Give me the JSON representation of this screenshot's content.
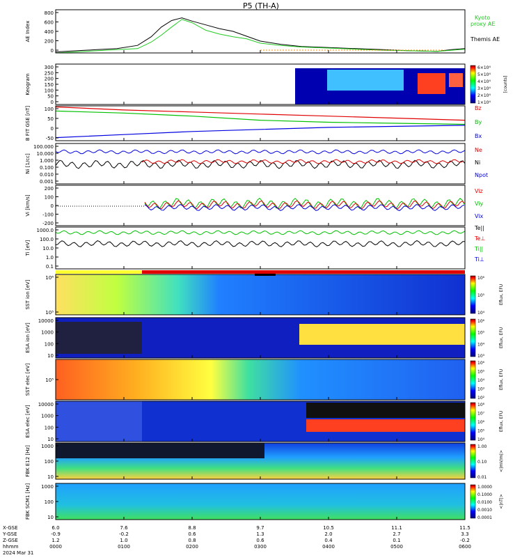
{
  "title": "P5 (TH-A)",
  "colors": {
    "black": "#000000",
    "red": "#e00000",
    "green": "#00c000",
    "blue": "#0000e0",
    "kyoto_green": "#22cc22",
    "orange": "#ff8c00",
    "yellow": "#ffff30"
  },
  "chart_data": {
    "type": "line",
    "time_axis": {
      "x_range_hours": [
        0,
        6
      ],
      "tick_hours": [
        0,
        1,
        2,
        3,
        4,
        5,
        6
      ],
      "tick_labels": [
        "0000",
        "0100",
        "0200",
        "0300",
        "0400",
        "0500",
        "0600"
      ],
      "date_label": "2024 Mar 31",
      "row_labels": [
        "X-GSE",
        "Y-GSE",
        "Z-GSE",
        "hhmm"
      ],
      "x_gse": [
        "6.0",
        "7.6",
        "8.8",
        "9.7",
        "10.5",
        "11.1",
        "11.5"
      ],
      "y_gse": [
        "-0.9",
        "-0.2",
        "0.6",
        "1.3",
        "2.0",
        "2.7",
        "3.3"
      ],
      "z_gse": [
        "1.2",
        "1.0",
        "0.8",
        "0.6",
        "0.4",
        "0.1",
        "-0.2"
      ]
    },
    "panels": [
      {
        "id": "ae",
        "ylabel": "AE Index",
        "yticks": [
          "0",
          "200",
          "400",
          "600",
          "800"
        ],
        "ylim": [
          0,
          800
        ],
        "legend": [
          "Kyoto",
          "proxy AE",
          "Themis AE"
        ],
        "series": [
          {
            "name": "Themis AE",
            "color": "black",
            "x": [
              0,
              0.3,
              0.6,
              0.9,
              1.2,
              1.4,
              1.55,
              1.7,
              1.85,
              2.0,
              2.2,
              2.4,
              2.6,
              2.8,
              3.0,
              3.3,
              3.6,
              4.0,
              4.4,
              4.8,
              5.2,
              5.6,
              5.8,
              6.0
            ],
            "y": [
              20,
              40,
              60,
              80,
              140,
              300,
              480,
              600,
              650,
              590,
              520,
              450,
              400,
              310,
              220,
              160,
              120,
              100,
              80,
              60,
              40,
              30,
              60,
              80
            ]
          },
          {
            "name": "Kyoto proxy AE",
            "color": "kyoto_green",
            "x": [
              0,
              0.3,
              0.6,
              0.9,
              1.2,
              1.4,
              1.55,
              1.7,
              1.85,
              2.0,
              2.2,
              2.4,
              2.6,
              2.8,
              3.0,
              3.3,
              3.6,
              4.0,
              4.4,
              4.8,
              5.2,
              5.6,
              5.8,
              6.0
            ],
            "y": [
              0,
              20,
              40,
              60,
              80,
              200,
              330,
              480,
              620,
              560,
              420,
              350,
              300,
              260,
              180,
              140,
              110,
              90,
              70,
              50,
              40,
              30,
              50,
              70
            ]
          }
        ]
      },
      {
        "id": "keogram",
        "ylabel": "Keogram",
        "yticks": [
          "0",
          "50",
          "100",
          "150",
          "200",
          "250",
          "300"
        ],
        "ylim": [
          0,
          300
        ],
        "colorbar": {
          "labels": [
            "1×10⁴",
            "2×10⁴",
            "3×10⁴",
            "4×10⁴",
            "5×10⁴",
            "6×10⁴"
          ],
          "title": "[counts]"
        }
      },
      {
        "id": "bfield",
        "ylabel": "B FIT GSE [nT]",
        "yticks": [
          "-50",
          "0",
          "50",
          "100"
        ],
        "ylim": [
          -60,
          110
        ],
        "legend": [
          "Bz",
          "By",
          "Bx"
        ],
        "series": [
          {
            "name": "Bz",
            "color": "red",
            "x": [
              0,
              1,
              2,
              3,
              4,
              5,
              6
            ],
            "y": [
              105,
              90,
              80,
              70,
              60,
              50,
              40
            ]
          },
          {
            "name": "By",
            "color": "green",
            "x": [
              0,
              1,
              2,
              3,
              4,
              5,
              6
            ],
            "y": [
              85,
              75,
              60,
              40,
              30,
              25,
              20
            ]
          },
          {
            "name": "Bx",
            "color": "blue",
            "x": [
              0,
              1,
              2,
              3,
              4,
              5,
              6
            ],
            "y": [
              -45,
              -30,
              -15,
              -5,
              5,
              10,
              15
            ]
          }
        ]
      },
      {
        "id": "density",
        "ylabel": "Ni [1/cc]",
        "yticks": [
          "0.001",
          "0.010",
          "0.100",
          "1.000",
          "10.000",
          "100.000"
        ],
        "log": true,
        "legend": [
          "Ne",
          "Ni",
          "Npot"
        ]
      },
      {
        "id": "velocity",
        "ylabel": "Vi [km/s]",
        "yticks": [
          "-200",
          "-100",
          "0",
          "100",
          "200"
        ],
        "ylim": [
          -250,
          250
        ],
        "legend": [
          "Viz",
          "Viy",
          "Vix"
        ]
      },
      {
        "id": "temperature",
        "ylabel": "Ti [eV]",
        "yticks": [
          "0.1",
          "1.0",
          "10.0",
          "100.0",
          "1000.0"
        ],
        "log": true,
        "legend": [
          "Te||",
          "Te⊥",
          "Ti||",
          "Ti⊥"
        ]
      },
      {
        "id": "sst_ion",
        "ylabel": "SST ion [eV]",
        "yticks": [
          "10⁵",
          "10⁶"
        ],
        "colorbar": {
          "labels": [
            "10⁴",
            "10⁵",
            "10⁶"
          ],
          "title": "Eflux, EFU"
        }
      },
      {
        "id": "esa_ion",
        "ylabel": "ESA ion [eV]",
        "yticks": [
          "10",
          "100",
          "1000",
          "10000"
        ],
        "colorbar": {
          "labels": [
            "10³",
            "10⁴",
            "10⁵",
            "10⁶"
          ],
          "title": "Eflux, EFU"
        }
      },
      {
        "id": "sst_elec",
        "ylabel": "SST elec [eV]",
        "yticks": [
          "10⁵"
        ],
        "colorbar": {
          "labels": [
            "10²",
            "10³",
            "10⁴",
            "10⁵",
            "10⁶"
          ],
          "title": "Eflux, EFU"
        }
      },
      {
        "id": "esa_elec",
        "ylabel": "ESA elec [eV]",
        "yticks": [
          "10",
          "100",
          "1000",
          "10000"
        ],
        "colorbar": {
          "labels": [
            "10⁴",
            "10⁵",
            "10⁶",
            "10⁷",
            "10⁸"
          ],
          "title": "Eflux, EFU"
        }
      },
      {
        "id": "fbk_e",
        "ylabel": "FBK E12 [Hz]",
        "yticks": [
          "10",
          "100",
          "1000"
        ],
        "colorbar": {
          "labels": [
            "0.01",
            "0.10",
            "1.00"
          ],
          "title": "<|mV/m|>"
        }
      },
      {
        "id": "fbk_b",
        "ylabel": "FBK SCM1 [Hz]",
        "yticks": [
          "10",
          "100",
          "1000"
        ],
        "colorbar": {
          "labels": [
            "0.0001",
            "0.0010",
            "0.0100",
            "0.1000",
            "1.0000"
          ],
          "title": "<|nT|>"
        }
      }
    ]
  },
  "panel_text": {
    "ae_legend_1": "Kyoto",
    "ae_legend_2": "proxy AE",
    "ae_legend_3": "Themis AE",
    "b_legend": [
      "Bz",
      "By",
      "Bx"
    ],
    "n_legend": [
      "Ne",
      "Ni",
      "Npot"
    ],
    "v_legend": [
      "Viz",
      "Viy",
      "Vix"
    ],
    "t_legend": [
      "Te||",
      "Te⊥",
      "Ti||",
      "Ti⊥"
    ],
    "ylabels": [
      "AE Index",
      "Keogram",
      "B FIT GSE",
      "Ni [1/cc]",
      "Vi [km/s]",
      "Ti [eV]",
      "SST ion [eV]",
      "ESA ion [eV]",
      "SST elec [eV]",
      "ESA elec [eV]",
      "FBK E12 [Hz]",
      "FBK SCM1 [Hz]"
    ]
  }
}
